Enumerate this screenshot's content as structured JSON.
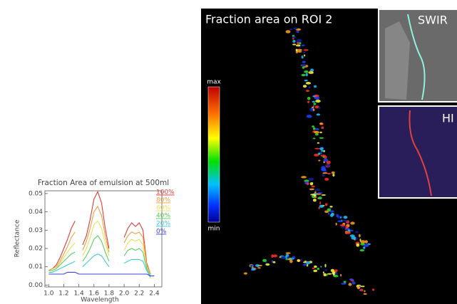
{
  "chart_data": {
    "type": "line",
    "title": "Fraction Area of emulsion at 500ml",
    "x_label": "Wavelength",
    "y_label": "Reflectance",
    "x": [
      1.0,
      1.05,
      1.1,
      1.15,
      1.2,
      1.25,
      1.3,
      1.35,
      1.4,
      1.45,
      1.5,
      1.55,
      1.6,
      1.65,
      1.7,
      1.75,
      1.8,
      1.9,
      2.0,
      2.05,
      2.1,
      2.15,
      2.2,
      2.25,
      2.3,
      2.35,
      2.4
    ],
    "series": [
      {
        "name": "100%",
        "color": "#e03a3a",
        "values": [
          0.008,
          0.009,
          0.011,
          0.015,
          0.02,
          0.025,
          0.031,
          0.035,
          null,
          0.022,
          0.027,
          0.036,
          0.047,
          0.051,
          0.045,
          0.031,
          0.02,
          null,
          0.026,
          0.031,
          0.034,
          0.032,
          0.034,
          0.03,
          0.012,
          0.006,
          null
        ]
      },
      {
        "name": "80%",
        "color": "#f0a040",
        "values": [
          0.008,
          0.009,
          0.01,
          0.013,
          0.017,
          0.021,
          0.026,
          0.029,
          null,
          0.019,
          0.024,
          0.031,
          0.04,
          0.043,
          0.038,
          0.027,
          0.018,
          null,
          0.023,
          0.027,
          0.029,
          0.028,
          0.029,
          0.026,
          0.011,
          0.006,
          null
        ]
      },
      {
        "name": "60%",
        "color": "#e8e060",
        "values": [
          0.008,
          0.008,
          0.009,
          0.012,
          0.015,
          0.018,
          0.021,
          0.023,
          null,
          0.016,
          0.02,
          0.026,
          0.033,
          0.035,
          0.031,
          0.023,
          0.016,
          null,
          0.019,
          0.023,
          0.025,
          0.024,
          0.025,
          0.022,
          0.01,
          0.005,
          null
        ]
      },
      {
        "name": "40%",
        "color": "#5cd05c",
        "values": [
          0.008,
          0.008,
          0.009,
          0.011,
          0.013,
          0.015,
          0.017,
          0.018,
          null,
          0.013,
          0.016,
          0.02,
          0.025,
          0.027,
          0.024,
          0.018,
          0.013,
          null,
          0.016,
          0.019,
          0.02,
          0.019,
          0.02,
          0.018,
          0.009,
          0.005,
          null
        ]
      },
      {
        "name": "20%",
        "color": "#40c8e0",
        "values": [
          0.007,
          0.007,
          0.008,
          0.009,
          0.01,
          0.011,
          0.012,
          0.013,
          null,
          0.01,
          0.012,
          0.014,
          0.016,
          0.017,
          0.016,
          0.013,
          0.01,
          null,
          0.012,
          0.013,
          0.014,
          0.014,
          0.014,
          0.013,
          0.008,
          0.004,
          null
        ]
      },
      {
        "name": "0%",
        "color": "#4040e0",
        "values": [
          0.006,
          0.006,
          0.006,
          0.006,
          0.006,
          0.007,
          0.007,
          0.007,
          0.006,
          0.006,
          0.006,
          0.006,
          0.006,
          0.006,
          0.006,
          0.006,
          0.006,
          0.006,
          0.006,
          0.006,
          0.006,
          0.006,
          0.006,
          0.006,
          0.006,
          0.005,
          0.005
        ]
      }
    ],
    "xlim": [
      0.95,
      2.5
    ],
    "ylim": [
      -0.001,
      0.0515
    ],
    "xticks": [
      {
        "value": 1.0,
        "label": "1.0"
      },
      1.2,
      1.4,
      1.6,
      1.8,
      {
        "value": 2.0,
        "label": "2.0"
      },
      2.2,
      2.4
    ],
    "yticks": [
      {
        "value": 0,
        "label": "0.00"
      },
      0.01,
      0.02,
      0.03,
      0.04,
      0.05
    ]
  },
  "image_panel": {
    "title": "Fraction area on ROI 2",
    "colorbar": {
      "max": "max",
      "min": "min"
    },
    "insets": [
      {
        "label": "SWIR"
      },
      {
        "label": "HI"
      }
    ]
  }
}
